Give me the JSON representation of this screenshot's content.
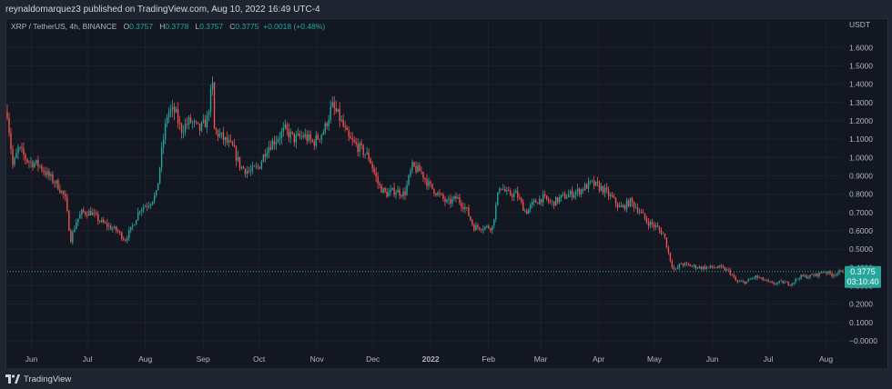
{
  "header": {
    "published_text": "reynaldomarquez3 published on TradingView.com, Aug 10, 2022 16:49 UTC-4"
  },
  "legend": {
    "symbol": "XRP / TetherUS, 4h, BINANCE",
    "open_label": "O",
    "open_value": "0.3757",
    "high_label": "H",
    "high_value": "0.3778",
    "low_label": "L",
    "low_value": "0.3757",
    "close_label": "C",
    "close_value": "0.3775",
    "change": "+0.0018 (+0.48%)"
  },
  "price_badge": {
    "price": "0.3775",
    "countdown": "03:10:40"
  },
  "footer": {
    "brand": "TradingView"
  },
  "colors": {
    "up": "#26a69a",
    "down": "#ef5350",
    "badge": "#26a69a",
    "bg": "#131722",
    "grid": "#1e222d"
  },
  "chart_data": {
    "type": "line",
    "title": "XRP / TetherUS, 4h, BINANCE",
    "ylabel": "USDT",
    "ylim": [
      -0.05,
      1.75
    ],
    "y_ticks": [
      "1.6000",
      "1.5000",
      "1.4000",
      "1.3000",
      "1.2000",
      "1.1000",
      "1.0000",
      "0.9000",
      "0.8000",
      "0.7000",
      "0.6000",
      "0.5000",
      "0.4000",
      "0.3000",
      "0.2000",
      "0.1000",
      "−0.0000"
    ],
    "x_ticks": [
      "Jun",
      "Jul",
      "Aug",
      "Sep",
      "Oct",
      "Nov",
      "Dec",
      "2022",
      "Feb",
      "Mar",
      "Apr",
      "May",
      "Jun",
      "Jul",
      "Aug"
    ],
    "x_tick_dates": [
      "2021-06-01",
      "2021-07-01",
      "2021-08-01",
      "2021-09-01",
      "2021-10-01",
      "2021-11-01",
      "2021-12-01",
      "2022-01-01",
      "2022-02-01",
      "2022-03-01",
      "2022-04-01",
      "2022-05-01",
      "2022-06-01",
      "2022-07-01",
      "2022-08-01"
    ],
    "x_range": [
      "2021-05-19",
      "2022-08-10"
    ],
    "series": [
      {
        "points": [
          [
            "2021-05-19",
            1.25
          ],
          [
            "2021-05-22",
            0.95
          ],
          [
            "2021-05-25",
            1.05
          ],
          [
            "2021-05-30",
            0.98
          ],
          [
            "2021-06-05",
            0.96
          ],
          [
            "2021-06-10",
            0.9
          ],
          [
            "2021-06-15",
            0.85
          ],
          [
            "2021-06-19",
            0.78
          ],
          [
            "2021-06-22",
            0.55
          ],
          [
            "2021-06-25",
            0.65
          ],
          [
            "2021-06-28",
            0.7
          ],
          [
            "2021-07-03",
            0.7
          ],
          [
            "2021-07-08",
            0.65
          ],
          [
            "2021-07-13",
            0.62
          ],
          [
            "2021-07-17",
            0.6
          ],
          [
            "2021-07-21",
            0.55
          ],
          [
            "2021-07-25",
            0.62
          ],
          [
            "2021-07-29",
            0.72
          ],
          [
            "2021-08-03",
            0.75
          ],
          [
            "2021-08-07",
            0.8
          ],
          [
            "2021-08-10",
            1.05
          ],
          [
            "2021-08-13",
            1.25
          ],
          [
            "2021-08-17",
            1.25
          ],
          [
            "2021-08-20",
            1.15
          ],
          [
            "2021-08-25",
            1.2
          ],
          [
            "2021-08-30",
            1.15
          ],
          [
            "2021-09-03",
            1.2
          ],
          [
            "2021-09-06",
            1.4
          ],
          [
            "2021-09-07",
            1.15
          ],
          [
            "2021-09-12",
            1.1
          ],
          [
            "2021-09-17",
            1.05
          ],
          [
            "2021-09-21",
            0.95
          ],
          [
            "2021-09-26",
            0.92
          ],
          [
            "2021-10-01",
            0.95
          ],
          [
            "2021-10-05",
            1.05
          ],
          [
            "2021-10-10",
            1.1
          ],
          [
            "2021-10-15",
            1.15
          ],
          [
            "2021-10-20",
            1.1
          ],
          [
            "2021-10-25",
            1.12
          ],
          [
            "2021-10-30",
            1.08
          ],
          [
            "2021-11-05",
            1.15
          ],
          [
            "2021-11-09",
            1.28
          ],
          [
            "2021-11-13",
            1.22
          ],
          [
            "2021-11-18",
            1.1
          ],
          [
            "2021-11-24",
            1.05
          ],
          [
            "2021-11-29",
            1.0
          ],
          [
            "2021-12-04",
            0.85
          ],
          [
            "2021-12-08",
            0.8
          ],
          [
            "2021-12-13",
            0.82
          ],
          [
            "2021-12-18",
            0.8
          ],
          [
            "2021-12-22",
            0.95
          ],
          [
            "2021-12-27",
            0.92
          ],
          [
            "2021-12-31",
            0.85
          ],
          [
            "2022-01-05",
            0.8
          ],
          [
            "2022-01-10",
            0.75
          ],
          [
            "2022-01-15",
            0.78
          ],
          [
            "2022-01-20",
            0.72
          ],
          [
            "2022-01-24",
            0.62
          ],
          [
            "2022-01-29",
            0.62
          ],
          [
            "2022-02-03",
            0.62
          ],
          [
            "2022-02-07",
            0.85
          ],
          [
            "2022-02-11",
            0.8
          ],
          [
            "2022-02-16",
            0.8
          ],
          [
            "2022-02-21",
            0.7
          ],
          [
            "2022-02-25",
            0.75
          ],
          [
            "2022-03-02",
            0.78
          ],
          [
            "2022-03-07",
            0.75
          ],
          [
            "2022-03-12",
            0.78
          ],
          [
            "2022-03-17",
            0.8
          ],
          [
            "2022-03-22",
            0.82
          ],
          [
            "2022-03-28",
            0.86
          ],
          [
            "2022-04-03",
            0.83
          ],
          [
            "2022-04-08",
            0.78
          ],
          [
            "2022-04-13",
            0.72
          ],
          [
            "2022-04-18",
            0.76
          ],
          [
            "2022-04-22",
            0.72
          ],
          [
            "2022-04-27",
            0.65
          ],
          [
            "2022-05-02",
            0.62
          ],
          [
            "2022-05-06",
            0.58
          ],
          [
            "2022-05-10",
            0.42
          ],
          [
            "2022-05-12",
            0.38
          ],
          [
            "2022-05-15",
            0.42
          ],
          [
            "2022-05-20",
            0.41
          ],
          [
            "2022-05-25",
            0.4
          ],
          [
            "2022-05-31",
            0.4
          ],
          [
            "2022-06-05",
            0.4
          ],
          [
            "2022-06-10",
            0.38
          ],
          [
            "2022-06-14",
            0.32
          ],
          [
            "2022-06-19",
            0.32
          ],
          [
            "2022-06-24",
            0.35
          ],
          [
            "2022-06-29",
            0.33
          ],
          [
            "2022-07-03",
            0.31
          ],
          [
            "2022-07-08",
            0.32
          ],
          [
            "2022-07-13",
            0.31
          ],
          [
            "2022-07-18",
            0.35
          ],
          [
            "2022-07-22",
            0.35
          ],
          [
            "2022-07-27",
            0.36
          ],
          [
            "2022-07-31",
            0.38
          ],
          [
            "2022-08-04",
            0.36
          ],
          [
            "2022-08-07",
            0.37
          ],
          [
            "2022-08-10",
            0.3775
          ]
        ]
      }
    ],
    "current_price": 0.3775,
    "grid": true,
    "legend_position": "top-left"
  }
}
